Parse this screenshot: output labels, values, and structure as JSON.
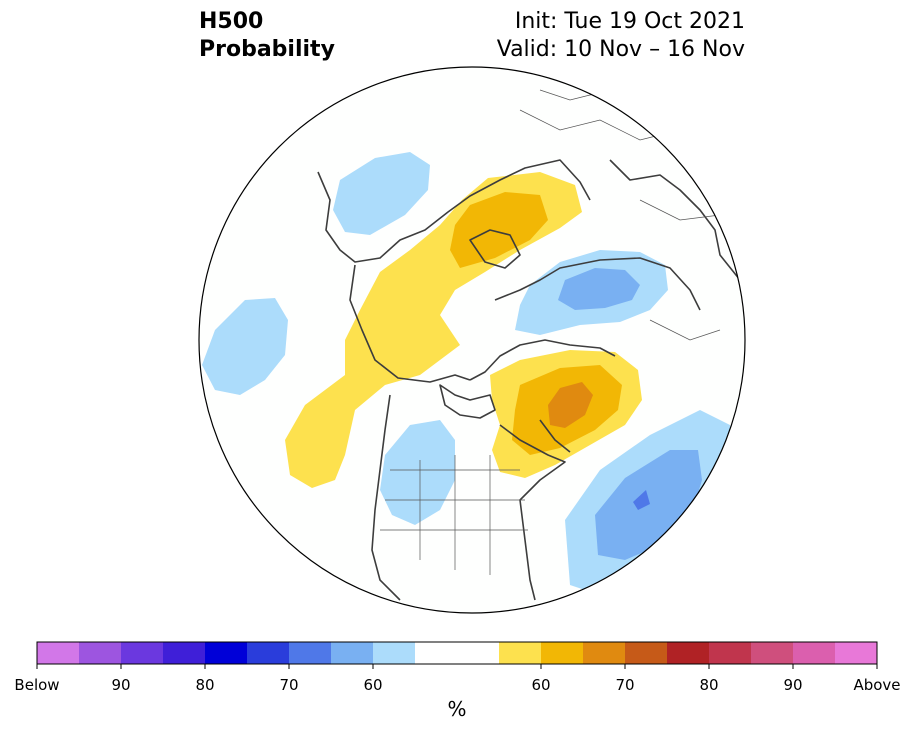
{
  "header": {
    "variable": "H500",
    "product": "Probability",
    "init": "Init: Tue 19 Oct 2021",
    "valid": "Valid: 10 Nov – 16 Nov"
  },
  "colorbar": {
    "unit_label": "%",
    "tick_labels": [
      "Below",
      "90",
      "80",
      "70",
      "60",
      "60",
      "70",
      "80",
      "90",
      "Above"
    ],
    "colors": [
      "#d277e8",
      "#9d55e0",
      "#6b38df",
      "#3f1fd8",
      "#0000d8",
      "#2a3ddb",
      "#4f78e8",
      "#79b0f2",
      "#acdcfb",
      "#ffffff",
      "#ffffff",
      "#fde14e",
      "#f2b705",
      "#e08a10",
      "#c65a18",
      "#b02225",
      "#c0354d",
      "#cf4f7d",
      "#db5fae",
      "#e878d8"
    ]
  },
  "anomalies": [
    {
      "name": "above-normal-arctic",
      "category": "Above",
      "max_level": "60-65"
    },
    {
      "name": "above-normal-hudson-bay",
      "category": "Above",
      "max_level": "65-70"
    },
    {
      "name": "below-normal-north-atlantic",
      "category": "Below",
      "max_level": "65-70"
    },
    {
      "name": "below-normal-siberia",
      "category": "Below",
      "max_level": "60-65"
    },
    {
      "name": "below-normal-western-us",
      "category": "Below",
      "max_level": "60-65"
    },
    {
      "name": "below-normal-north-pacific",
      "category": "Below",
      "max_level": "55-60"
    },
    {
      "name": "below-normal-europe",
      "category": "Below",
      "max_level": "55-60"
    }
  ]
}
